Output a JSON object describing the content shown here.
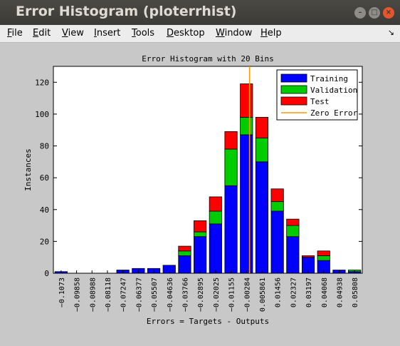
{
  "window": {
    "title": "Error Histogram (ploterrhist)",
    "buttons": {
      "minimize": "–",
      "maximize": "□",
      "close": "×"
    }
  },
  "menu": [
    {
      "key": "F",
      "rest": "ile"
    },
    {
      "key": "E",
      "rest": "dit"
    },
    {
      "key": "V",
      "rest": "iew"
    },
    {
      "key": "I",
      "rest": "nsert"
    },
    {
      "key": "T",
      "rest": "ools"
    },
    {
      "key": "D",
      "rest": "esktop"
    },
    {
      "key": "W",
      "rest": "indow"
    },
    {
      "key": "H",
      "rest": "elp"
    }
  ],
  "menu_arrow": "↘",
  "chart_data": {
    "type": "bar",
    "stacked": true,
    "title": "Error Histogram with 20 Bins",
    "xlabel": "Errors = Targets - Outputs",
    "ylabel": "Instances",
    "ylim": [
      0,
      130
    ],
    "yticks": [
      0,
      20,
      40,
      60,
      80,
      100,
      120
    ],
    "categories": [
      "-0.1073",
      "-0.09858",
      "-0.08988",
      "-0.08118",
      "-0.07247",
      "-0.06377",
      "-0.05507",
      "-0.04636",
      "-0.03766",
      "-0.02895",
      "-0.02025",
      "-0.01155",
      "-0.00284",
      "0.005861",
      "0.01456",
      "0.02327",
      "0.03197",
      "0.04068",
      "0.04938",
      "0.05808"
    ],
    "series": [
      {
        "name": "Training",
        "color": "#0000ff",
        "values": [
          1,
          0,
          0,
          0,
          2,
          3,
          3,
          5,
          11,
          23,
          31,
          55,
          87,
          70,
          39,
          23,
          10,
          8,
          2,
          1
        ]
      },
      {
        "name": "Validation",
        "color": "#00cc00",
        "values": [
          0,
          0,
          0,
          0,
          0,
          0,
          0,
          0,
          3,
          3,
          8,
          23,
          11,
          15,
          6,
          7,
          0,
          3,
          0,
          1
        ]
      },
      {
        "name": "Test",
        "color": "#ff0000",
        "values": [
          0,
          0,
          0,
          0,
          0,
          0,
          0,
          0,
          3,
          7,
          9,
          11,
          21,
          13,
          8,
          4,
          1,
          3,
          0,
          0
        ]
      }
    ],
    "zero_error": {
      "name": "Zero Error",
      "color": "#ff9900",
      "bin_position": 12.7
    },
    "legend_position": "top-right",
    "grid": false
  }
}
